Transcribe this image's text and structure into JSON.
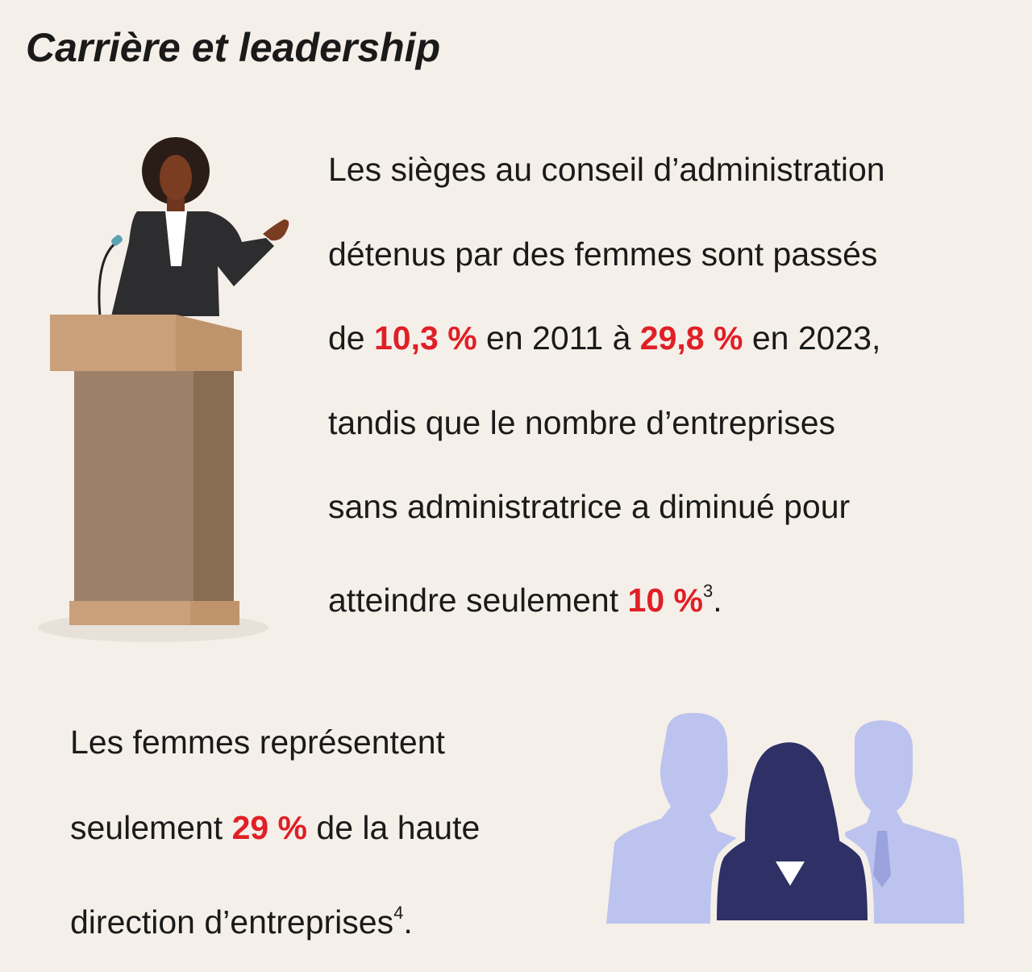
{
  "title": "Carrière et leadership",
  "block1": {
    "lines": [
      [
        "Les sièges au conseil d’administration"
      ],
      [
        "détenus par des femmes sont passés"
      ],
      [
        "de ",
        {
          "strong": "10,3 %"
        },
        " en 2011 à ",
        {
          "strong": "29,8 %"
        },
        " en 2023,"
      ],
      [
        "tandis que le nombre d’entreprises"
      ],
      [
        "sans administratrice a diminué pour"
      ],
      [
        "atteindre seulement ",
        {
          "strong": "10 %"
        },
        {
          "sup": "3"
        },
        "."
      ]
    ]
  },
  "block2": {
    "lines": [
      [
        "Les femmes représentent"
      ],
      [
        "seulement ",
        {
          "strong": "29 %"
        },
        " de la haute"
      ],
      [
        "direction d’entreprises",
        {
          "sup": "4"
        },
        "."
      ]
    ]
  }
}
